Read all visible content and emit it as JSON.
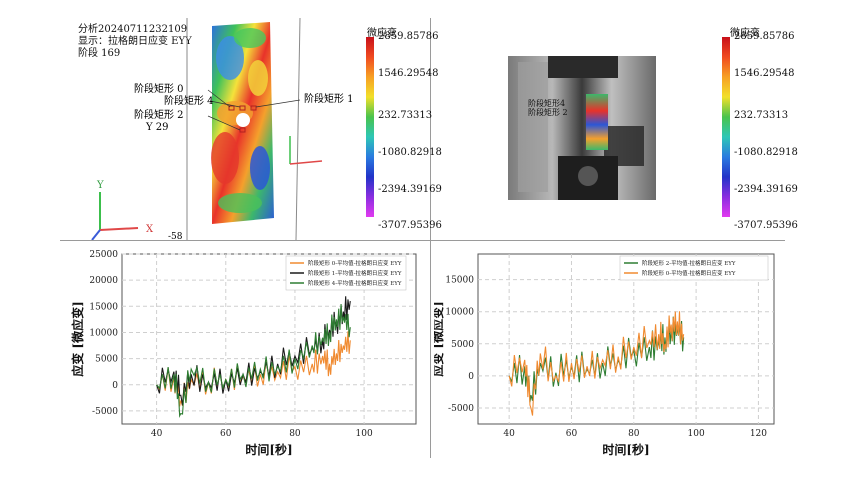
{
  "top_left": {
    "info_lines": [
      "分析20240711232109",
      "显示：拉格朗日应变 EYY",
      "阶段 169"
    ],
    "labels": {
      "rect0": "阶段矩形 0",
      "rect4": "阶段矩形 4",
      "rect1": "阶段矩形 1",
      "rect2": "阶段矩形 2",
      "y_readout": "Y    29",
      "y_bottom": "-58"
    },
    "axes": {
      "x": "X",
      "y": "Y"
    },
    "colorbar": {
      "title": "微应变",
      "ticks": [
        "2859.85786",
        "1546.29548",
        "232.73313",
        "-1080.82918",
        "-2394.39169",
        "-3707.95396"
      ]
    }
  },
  "top_right": {
    "overlay_labels": [
      "阶段矩形4",
      "阶段矩形 2"
    ],
    "colorbar": {
      "title": "微应变",
      "ticks": [
        "2859.85786",
        "1546.29548",
        "232.73313",
        "-1080.82918",
        "-2394.39169",
        "-3707.95396"
      ]
    }
  },
  "chart_data": [
    {
      "type": "line",
      "xlabel": "时间[秒]",
      "ylabel": "应变 [微应变]",
      "xlim": [
        30,
        115
      ],
      "ylim": [
        -7500,
        25000
      ],
      "xticks": [
        40,
        60,
        80,
        100
      ],
      "yticks": [
        -5000,
        0,
        5000,
        10000,
        15000,
        20000,
        25000
      ],
      "grid": true,
      "legend_position": "top-right",
      "series": [
        {
          "name": "阶段矩形 0-平均值-拉格朗日应变 EYY",
          "color": "#f08a30",
          "x": [
            40,
            45,
            47,
            50,
            55,
            60,
            65,
            70,
            75,
            80,
            85,
            88,
            90,
            92,
            94,
            96
          ],
          "y": [
            0,
            1500,
            -3000,
            1000,
            500,
            1000,
            1500,
            2000,
            2500,
            3500,
            4000,
            5500,
            4000,
            6000,
            7500,
            8500
          ]
        },
        {
          "name": "阶段矩形 1-平均值-拉格朗日应变 EYY",
          "color": "#1a1a1a",
          "x": [
            40,
            45,
            47,
            50,
            55,
            60,
            65,
            70,
            75,
            80,
            85,
            88,
            90,
            92,
            94,
            96
          ],
          "y": [
            0,
            2500,
            -2000,
            2000,
            500,
            1000,
            2000,
            2500,
            4000,
            5500,
            7000,
            8500,
            10500,
            12000,
            14000,
            16000
          ]
        },
        {
          "name": "阶段矩形 4-平均值-拉格朗日应变 EYY",
          "color": "#2e7d32",
          "x": [
            40,
            45,
            47,
            50,
            55,
            60,
            65,
            70,
            75,
            80,
            85,
            88,
            90,
            92,
            94,
            96
          ],
          "y": [
            0,
            2000,
            -5500,
            3000,
            500,
            1000,
            2000,
            3000,
            3500,
            5000,
            7500,
            9000,
            10000,
            12500,
            13000,
            11000
          ]
        }
      ]
    },
    {
      "type": "line",
      "xlabel": "时间[秒]",
      "ylabel": "应变 [微应变]",
      "xlim": [
        30,
        125
      ],
      "ylim": [
        -7500,
        19000
      ],
      "xticks": [
        40,
        60,
        80,
        100,
        120
      ],
      "yticks": [
        -5000,
        0,
        5000,
        10000,
        15000
      ],
      "grid": true,
      "legend_position": "top-right",
      "series": [
        {
          "name": "阶段矩形 2-平均值-拉格朗日应变 EYY",
          "color": "#2e7d32",
          "x": [
            40,
            45,
            47,
            50,
            55,
            60,
            65,
            70,
            75,
            80,
            85,
            88,
            90,
            92,
            94,
            96
          ],
          "y": [
            0,
            1500,
            -3000,
            2000,
            500,
            1500,
            1000,
            2000,
            2500,
            4000,
            4500,
            5500,
            6000,
            7000,
            7500,
            6000
          ]
        },
        {
          "name": "阶段矩形 0-平均值-拉格朗日应变 EYY",
          "color": "#f08a30",
          "x": [
            40,
            45,
            47,
            50,
            55,
            60,
            65,
            70,
            75,
            80,
            85,
            88,
            90,
            92,
            94,
            96
          ],
          "y": [
            0,
            2500,
            -5000,
            3500,
            0,
            2000,
            1500,
            2500,
            3000,
            4500,
            5500,
            6500,
            5000,
            8000,
            8500,
            6500
          ]
        }
      ]
    }
  ]
}
